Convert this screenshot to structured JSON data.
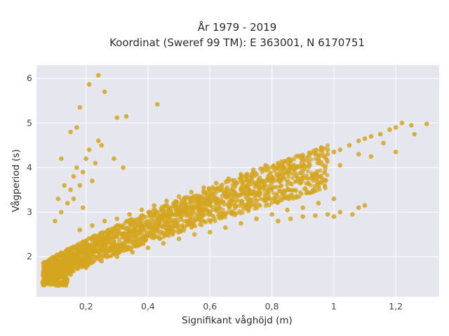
{
  "chart_data": {
    "type": "scatter",
    "title_lines": [
      "År 1979 - 2019",
      "Koordinat (Sweref 99 TM): E 363001, N 6170751"
    ],
    "xlabel": "Signifikant våghöjd (m)",
    "ylabel": "Vågperiod (s)",
    "xlim": [
      0.04,
      1.34
    ],
    "ylim": [
      1.1,
      6.3
    ],
    "x_ticks": [
      0.2,
      0.4,
      0.6,
      0.8,
      1.0,
      1.2
    ],
    "x_tick_labels": [
      "0,2",
      "0,4",
      "0,6",
      "0,8",
      "1",
      "1,2"
    ],
    "y_ticks": [
      2,
      3,
      4,
      5,
      6
    ],
    "y_tick_labels": [
      "2",
      "3",
      "4",
      "5",
      "6"
    ],
    "grid": true,
    "legend": "none",
    "marker_color": "#D4A520",
    "plot_background": "#E6E6EF",
    "grid_color": "#FFFFFF",
    "series": [
      {
        "points": [
          [
            0.06,
            1.42
          ],
          [
            0.07,
            1.48
          ],
          [
            0.08,
            1.5
          ],
          [
            0.09,
            1.45
          ],
          [
            0.1,
            1.4
          ],
          [
            0.11,
            1.55
          ],
          [
            0.12,
            1.6
          ],
          [
            0.12,
            1.75
          ],
          [
            0.13,
            1.7
          ],
          [
            0.14,
            1.85
          ],
          [
            0.15,
            1.8
          ],
          [
            0.16,
            1.9
          ],
          [
            0.17,
            2.0
          ],
          [
            0.18,
            1.95
          ],
          [
            0.19,
            2.1
          ],
          [
            0.2,
            2.05
          ],
          [
            0.21,
            2.15
          ],
          [
            0.22,
            2.2
          ],
          [
            0.24,
            2.3
          ],
          [
            0.26,
            2.35
          ],
          [
            0.28,
            2.4
          ],
          [
            0.3,
            2.45
          ],
          [
            0.32,
            2.5
          ],
          [
            0.34,
            2.55
          ],
          [
            0.36,
            2.6
          ],
          [
            0.38,
            2.7
          ],
          [
            0.4,
            2.75
          ],
          [
            0.42,
            2.8
          ],
          [
            0.44,
            2.85
          ],
          [
            0.46,
            2.9
          ],
          [
            0.48,
            2.95
          ],
          [
            0.5,
            3.0
          ],
          [
            0.52,
            3.05
          ],
          [
            0.55,
            3.1
          ],
          [
            0.58,
            3.2
          ],
          [
            0.6,
            3.25
          ],
          [
            0.62,
            3.3
          ],
          [
            0.65,
            3.35
          ],
          [
            0.68,
            3.45
          ],
          [
            0.7,
            3.5
          ],
          [
            0.72,
            3.55
          ],
          [
            0.75,
            3.6
          ],
          [
            0.78,
            3.7
          ],
          [
            0.8,
            3.75
          ],
          [
            0.82,
            3.8
          ],
          [
            0.85,
            3.9
          ],
          [
            0.88,
            4.0
          ],
          [
            0.9,
            4.05
          ],
          [
            0.92,
            4.1
          ],
          [
            0.95,
            4.2
          ],
          [
            0.98,
            4.3
          ],
          [
            1.0,
            4.35
          ],
          [
            1.02,
            4.4
          ],
          [
            1.05,
            4.5
          ],
          [
            1.08,
            4.6
          ],
          [
            1.1,
            4.65
          ],
          [
            1.12,
            4.7
          ],
          [
            1.15,
            4.75
          ],
          [
            1.18,
            4.85
          ],
          [
            1.2,
            4.9
          ],
          [
            1.22,
            5.0
          ],
          [
            1.25,
            4.95
          ],
          [
            1.26,
            4.75
          ],
          [
            1.3,
            4.98
          ],
          [
            0.15,
            1.6
          ],
          [
            0.2,
            1.75
          ],
          [
            0.25,
            1.9
          ],
          [
            0.3,
            2.0
          ],
          [
            0.35,
            2.1
          ],
          [
            0.4,
            2.2
          ],
          [
            0.45,
            2.3
          ],
          [
            0.5,
            2.4
          ],
          [
            0.55,
            2.5
          ],
          [
            0.6,
            2.55
          ],
          [
            0.65,
            2.65
          ],
          [
            0.7,
            2.75
          ],
          [
            0.75,
            2.85
          ],
          [
            0.8,
            2.95
          ],
          [
            0.85,
            3.05
          ],
          [
            0.9,
            3.1
          ],
          [
            0.95,
            3.2
          ],
          [
            1.0,
            3.3
          ],
          [
            0.18,
            2.6
          ],
          [
            0.22,
            2.7
          ],
          [
            0.26,
            2.8
          ],
          [
            0.3,
            2.85
          ],
          [
            0.34,
            2.95
          ],
          [
            0.38,
            3.05
          ],
          [
            0.42,
            3.15
          ],
          [
            0.46,
            3.25
          ],
          [
            0.5,
            3.35
          ],
          [
            0.54,
            3.45
          ],
          [
            0.58,
            3.55
          ],
          [
            0.62,
            3.65
          ],
          [
            0.66,
            3.75
          ],
          [
            0.7,
            3.85
          ],
          [
            0.74,
            3.95
          ],
          [
            0.78,
            4.05
          ],
          [
            0.82,
            4.1
          ],
          [
            0.86,
            4.15
          ],
          [
            0.9,
            4.25
          ],
          [
            0.94,
            4.3
          ],
          [
            0.98,
            4.4
          ],
          [
            0.82,
            2.8
          ],
          [
            0.86,
            2.85
          ],
          [
            0.9,
            2.9
          ],
          [
            0.94,
            2.92
          ],
          [
            0.98,
            2.95
          ],
          [
            1.0,
            2.9
          ],
          [
            1.02,
            3.0
          ],
          [
            1.06,
            2.95
          ],
          [
            1.08,
            3.1
          ],
          [
            1.1,
            3.15
          ],
          [
            0.12,
            3.0
          ],
          [
            0.14,
            3.2
          ],
          [
            0.15,
            3.5
          ],
          [
            0.16,
            3.8
          ],
          [
            0.17,
            4.0
          ],
          [
            0.18,
            3.6
          ],
          [
            0.19,
            3.9
          ],
          [
            0.2,
            4.2
          ],
          [
            0.21,
            4.4
          ],
          [
            0.22,
            3.7
          ],
          [
            0.23,
            4.1
          ],
          [
            0.24,
            4.6
          ],
          [
            0.25,
            4.5
          ],
          [
            0.12,
            4.2
          ],
          [
            0.15,
            4.8
          ],
          [
            0.17,
            4.9
          ],
          [
            0.1,
            2.8
          ],
          [
            0.11,
            3.3
          ],
          [
            0.13,
            3.6
          ],
          [
            0.16,
            3.3
          ],
          [
            0.19,
            3.1
          ],
          [
            0.18,
            5.35
          ],
          [
            0.21,
            5.87
          ],
          [
            0.24,
            6.07
          ],
          [
            0.26,
            5.7
          ],
          [
            0.3,
            5.12
          ],
          [
            0.33,
            5.15
          ],
          [
            0.43,
            5.42
          ],
          [
            0.29,
            4.2
          ],
          [
            0.32,
            4.0
          ],
          [
            1.02,
            4.05
          ],
          [
            1.08,
            4.3
          ],
          [
            1.12,
            4.25
          ],
          [
            1.2,
            4.35
          ],
          [
            1.16,
            4.55
          ],
          [
            0.96,
            4.45
          ]
        ]
      }
    ]
  }
}
